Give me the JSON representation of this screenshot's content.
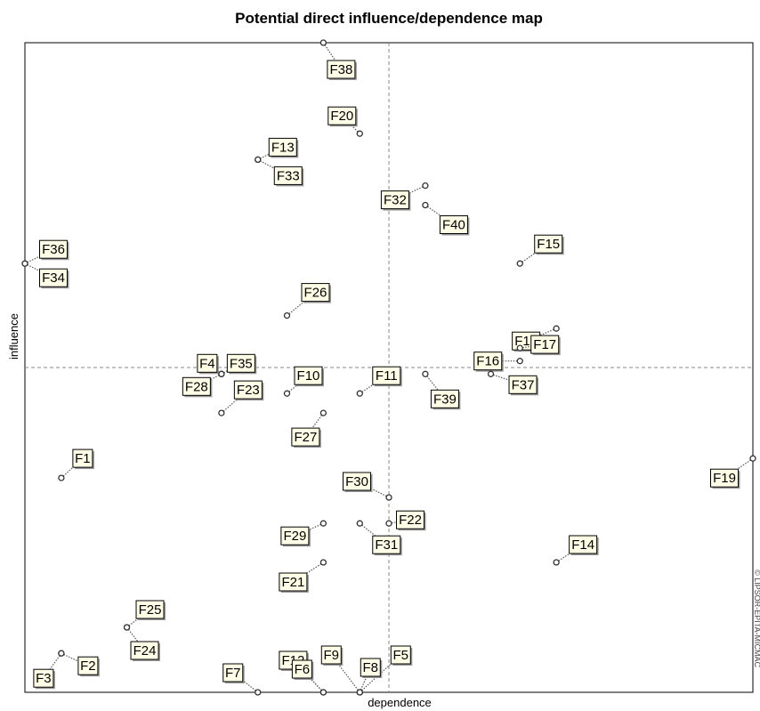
{
  "chart_data": {
    "type": "scatter",
    "title": "Potential direct influence/dependence map",
    "xlabel": "dependence",
    "ylabel": "influence",
    "watermark": "© LIPSOR-EPITA-MICMAC",
    "xlim": [
      0,
      1
    ],
    "ylim": [
      0,
      1
    ],
    "reference_lines": {
      "x": 0.5,
      "y": 0.5
    },
    "points": [
      {
        "label": "F38",
        "x": 0.41,
        "y": 1.0
      },
      {
        "label": "F20",
        "x": 0.46,
        "y": 0.86
      },
      {
        "label": "F13",
        "x": 0.32,
        "y": 0.82
      },
      {
        "label": "F33",
        "x": 0.32,
        "y": 0.82
      },
      {
        "label": "F32",
        "x": 0.55,
        "y": 0.78
      },
      {
        "label": "F40",
        "x": 0.55,
        "y": 0.75
      },
      {
        "label": "F36",
        "x": 0.0,
        "y": 0.66
      },
      {
        "label": "F34",
        "x": 0.0,
        "y": 0.66
      },
      {
        "label": "F15",
        "x": 0.68,
        "y": 0.66
      },
      {
        "label": "F26",
        "x": 0.36,
        "y": 0.58
      },
      {
        "label": "F18",
        "x": 0.73,
        "y": 0.56
      },
      {
        "label": "F17",
        "x": 0.68,
        "y": 0.53
      },
      {
        "label": "F16",
        "x": 0.68,
        "y": 0.51
      },
      {
        "label": "F4",
        "x": 0.27,
        "y": 0.49
      },
      {
        "label": "F35",
        "x": 0.27,
        "y": 0.49
      },
      {
        "label": "F28",
        "x": 0.27,
        "y": 0.49
      },
      {
        "label": "F10",
        "x": 0.36,
        "y": 0.46
      },
      {
        "label": "F11",
        "x": 0.46,
        "y": 0.46
      },
      {
        "label": "F39",
        "x": 0.55,
        "y": 0.49
      },
      {
        "label": "F37",
        "x": 0.64,
        "y": 0.49
      },
      {
        "label": "F23",
        "x": 0.27,
        "y": 0.43
      },
      {
        "label": "F27",
        "x": 0.41,
        "y": 0.43
      },
      {
        "label": "F1",
        "x": 0.05,
        "y": 0.33
      },
      {
        "label": "F19",
        "x": 1.0,
        "y": 0.36
      },
      {
        "label": "F30",
        "x": 0.5,
        "y": 0.3
      },
      {
        "label": "F22",
        "x": 0.5,
        "y": 0.26
      },
      {
        "label": "F29",
        "x": 0.41,
        "y": 0.26
      },
      {
        "label": "F31",
        "x": 0.46,
        "y": 0.26
      },
      {
        "label": "F14",
        "x": 0.73,
        "y": 0.2
      },
      {
        "label": "F21",
        "x": 0.41,
        "y": 0.2
      },
      {
        "label": "F25",
        "x": 0.14,
        "y": 0.1
      },
      {
        "label": "F24",
        "x": 0.14,
        "y": 0.1
      },
      {
        "label": "F2",
        "x": 0.05,
        "y": 0.06
      },
      {
        "label": "F3",
        "x": 0.05,
        "y": 0.06
      },
      {
        "label": "F12",
        "x": 0.41,
        "y": 0.0
      },
      {
        "label": "F6",
        "x": 0.41,
        "y": 0.0
      },
      {
        "label": "F7",
        "x": 0.32,
        "y": 0.0
      },
      {
        "label": "F9",
        "x": 0.46,
        "y": 0.0
      },
      {
        "label": "F5",
        "x": 0.46,
        "y": 0.0
      },
      {
        "label": "F8",
        "x": 0.46,
        "y": 0.0
      }
    ]
  }
}
